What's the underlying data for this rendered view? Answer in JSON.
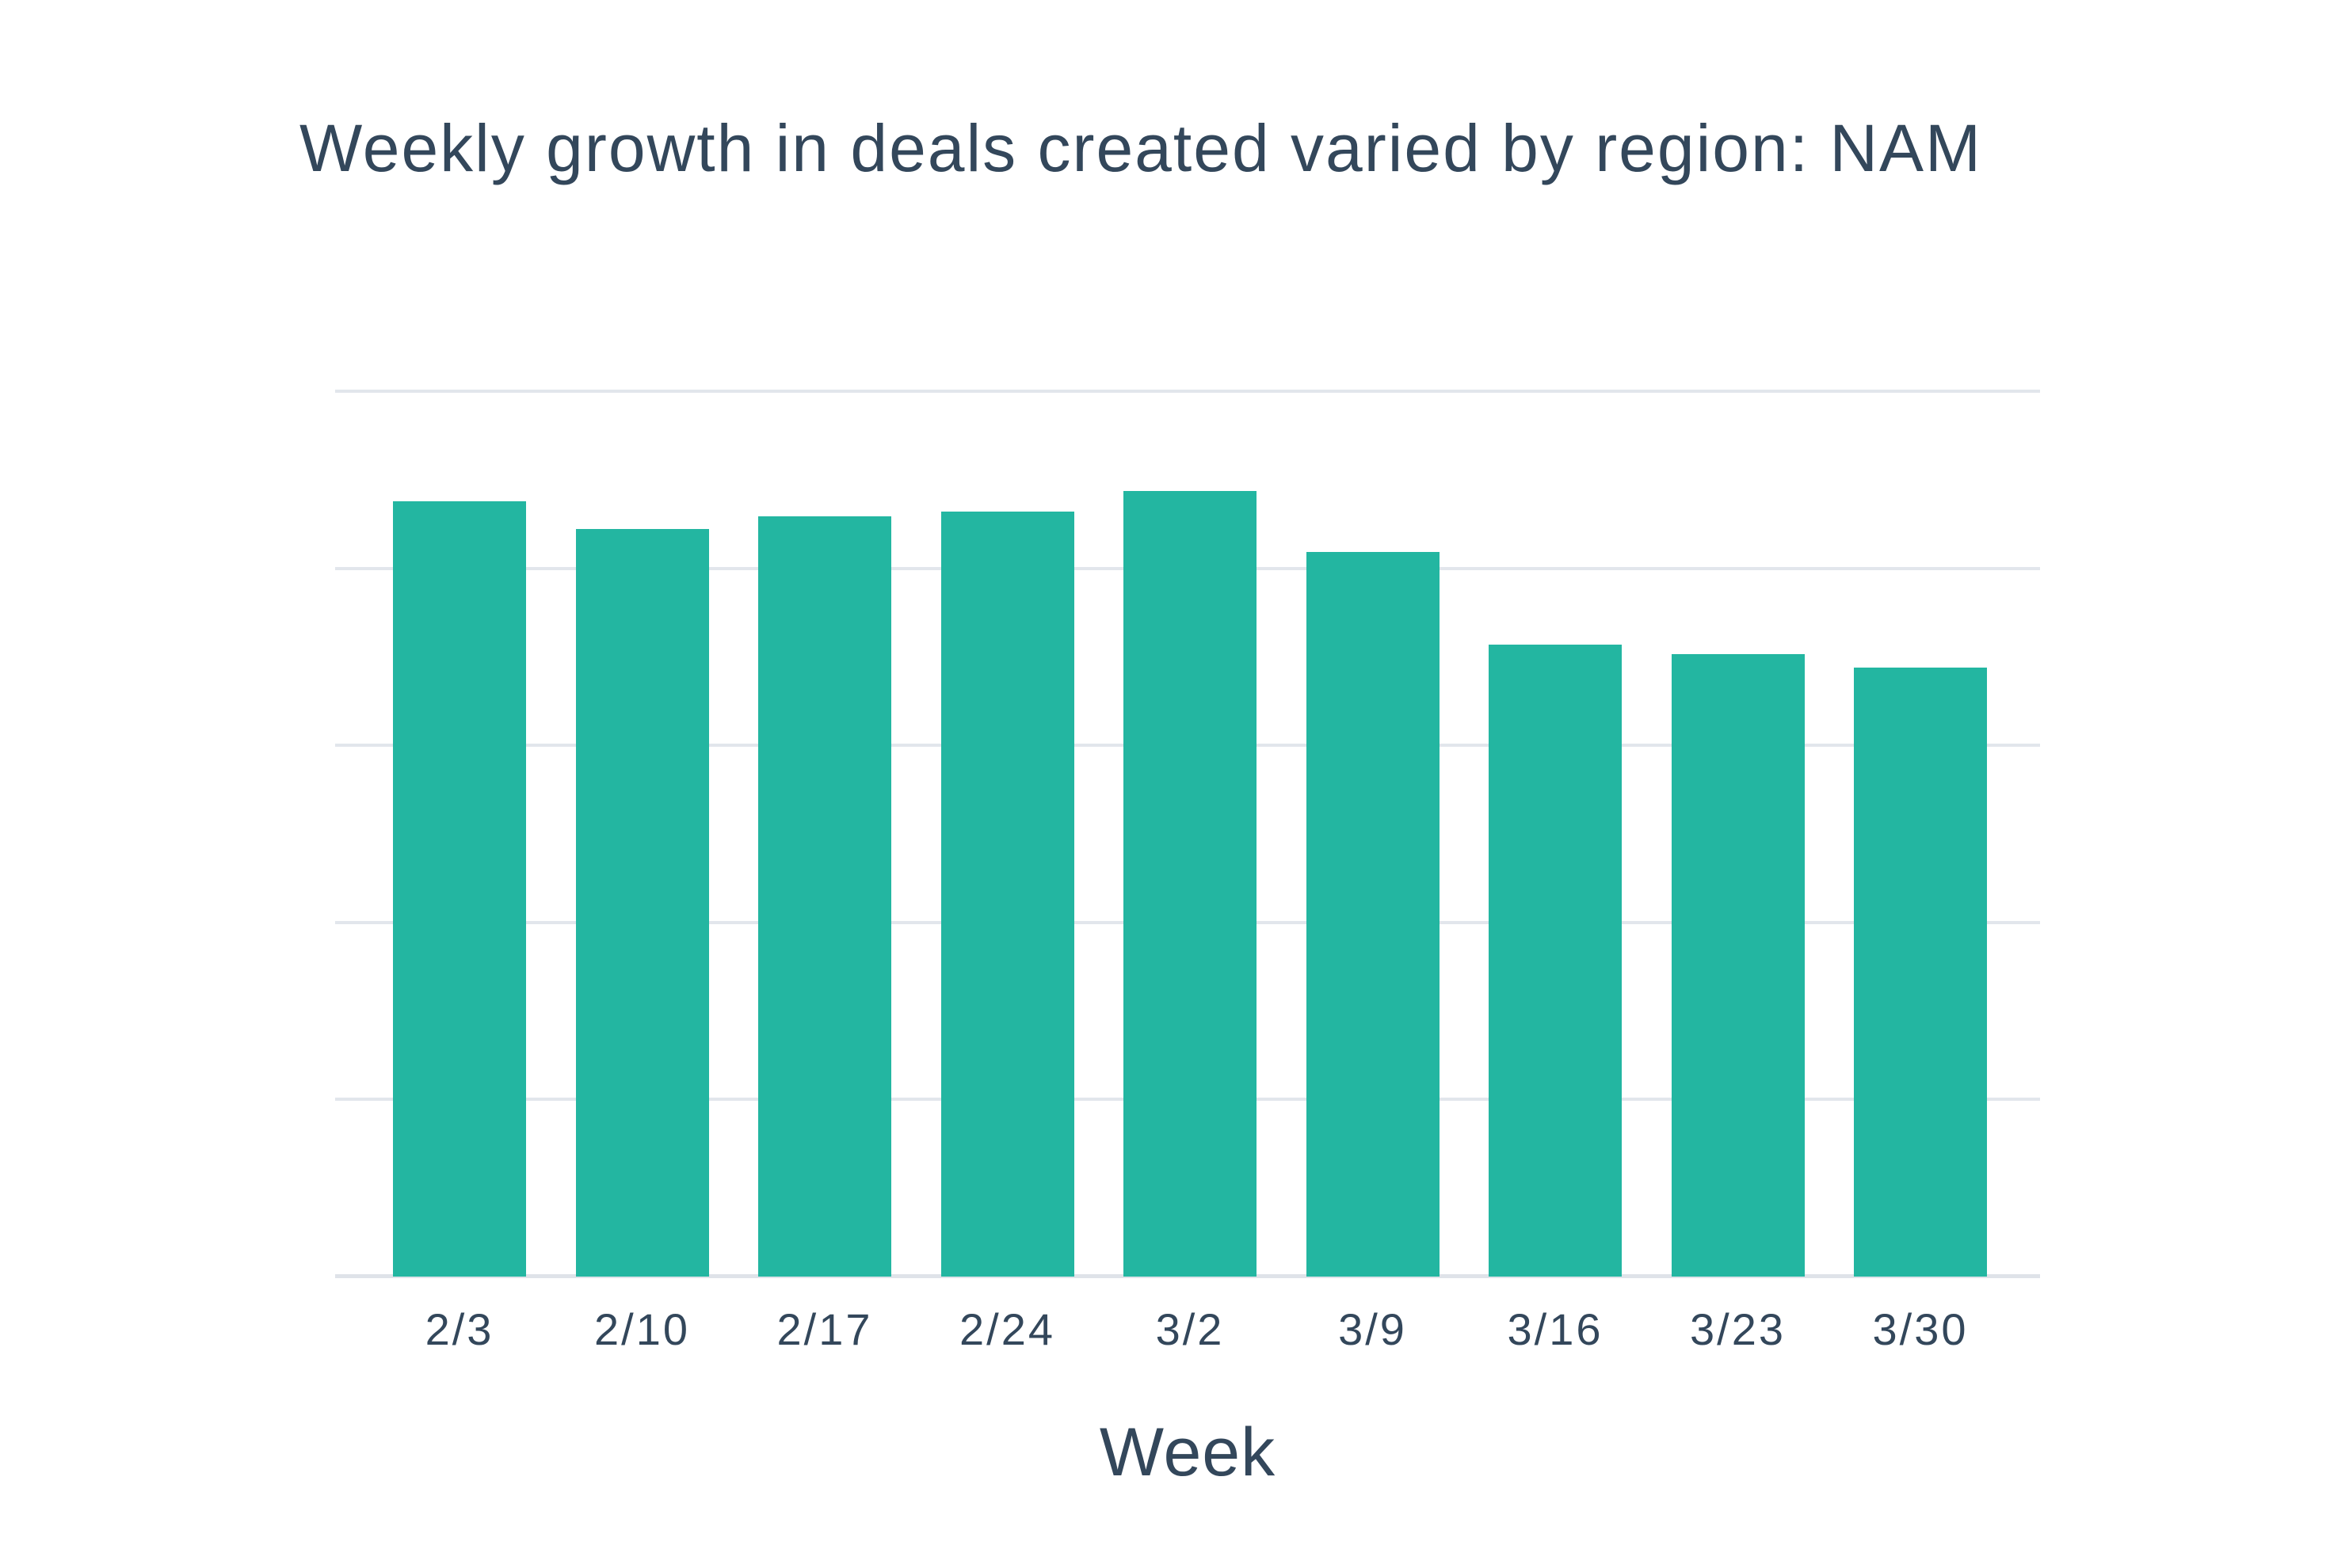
{
  "page": {
    "background_color": "#ffffff"
  },
  "chart": {
    "title": "Weekly growth in deals created varied by region: NAM",
    "x_axis_title": "Week",
    "colors": {
      "bar": "#23b6a1",
      "gridline": "#e2e6ec",
      "axis_line": "#dfe3e9",
      "text": "#33475b"
    }
  },
  "chart_data": {
    "type": "bar",
    "title": "Weekly growth in deals created varied by region: NAM",
    "xlabel": "Week",
    "ylabel": "",
    "categories": [
      "2/3",
      "2/10",
      "2/17",
      "2/24",
      "3/2",
      "3/9",
      "3/16",
      "3/23",
      "3/30"
    ],
    "values": [
      87.6,
      84.4,
      85.9,
      86.4,
      88.7,
      81.8,
      71.4,
      70.3,
      68.8
    ],
    "value_note": "estimated from gridlines; no y-axis tick labels are shown in the chart",
    "ylim": [
      0,
      100
    ],
    "gridline_step": 20,
    "grid": "horizontal",
    "legend": "none",
    "y_tick_labels_visible": false,
    "bar_color": "#23b6a1"
  }
}
